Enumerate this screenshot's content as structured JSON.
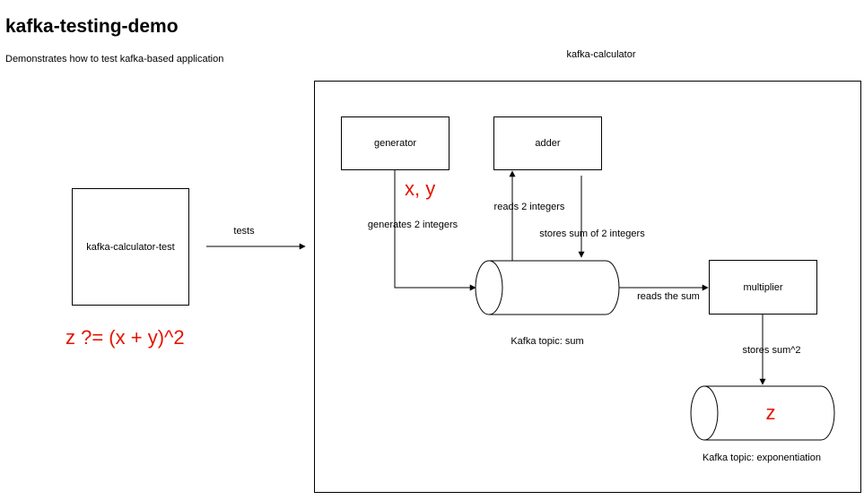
{
  "header": {
    "title": "kafka-testing-demo",
    "subtitle": "Demonstrates how to test kafka-based application"
  },
  "container": {
    "label": "kafka-calculator"
  },
  "nodes": {
    "test": "kafka-calculator-test",
    "generator": "generator",
    "adder": "adder",
    "multiplier": "multiplier",
    "topic_sum": "Kafka topic: sum",
    "topic_exp": "Kafka topic: exponentiation"
  },
  "edges": {
    "tests": "tests",
    "generates": "generates 2 integers",
    "reads": "reads 2 integers",
    "stores_sum": "stores sum of 2 integers",
    "reads_sum": "reads the sum",
    "stores_sq": "stores sum^2"
  },
  "annotations": {
    "xy": "x, y",
    "z": "z",
    "formula": "z ?= (x + y)^2"
  },
  "colors": {
    "line": "#000000",
    "annotation": "#e51400"
  }
}
